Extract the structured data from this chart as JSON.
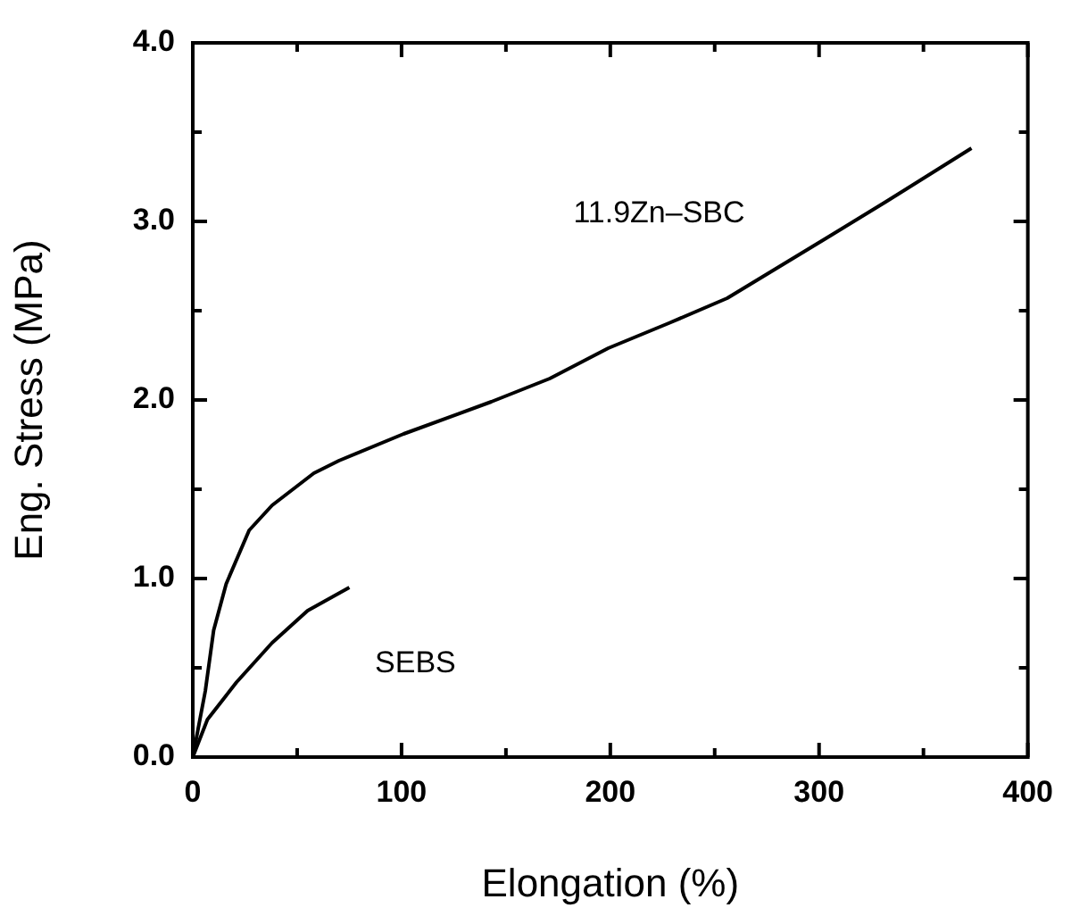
{
  "chart_data": {
    "type": "line",
    "xlabel": "Elongation (%)",
    "ylabel": "Eng. Stress (MPa)",
    "xlim": [
      0,
      400
    ],
    "ylim": [
      0,
      4
    ],
    "xticks": [
      0,
      {
        "value": 50,
        "label": null
      },
      100,
      {
        "value": 150,
        "label": null
      },
      200,
      {
        "value": 250,
        "label": null
      },
      300,
      {
        "value": 350,
        "label": null
      },
      400
    ],
    "yticks": [
      {
        "value": 0,
        "label": "0.0"
      },
      {
        "value": 0.5,
        "label": null
      },
      {
        "value": 1,
        "label": "1.0"
      },
      {
        "value": 1.5,
        "label": null
      },
      {
        "value": 2,
        "label": "2.0"
      },
      {
        "value": 2.5,
        "label": null
      },
      {
        "value": 3,
        "label": "3.0"
      },
      {
        "value": 3.5,
        "label": null
      },
      {
        "value": 4,
        "label": "4.0"
      }
    ],
    "series": [
      {
        "name": "11.9Zn–SBC",
        "color": "#000000",
        "x": [
          0,
          6,
          10,
          16,
          27,
          38,
          58,
          70,
          101,
          143,
          171,
          199,
          228,
          256,
          304,
          332,
          373
        ],
        "values": [
          0,
          0.37,
          0.71,
          0.97,
          1.27,
          1.41,
          1.59,
          1.66,
          1.81,
          1.99,
          2.12,
          2.29,
          2.43,
          2.57,
          2.91,
          3.11,
          3.41
        ]
      },
      {
        "name": "SEBS",
        "color": "#000000",
        "x": [
          0,
          7,
          21,
          38,
          55,
          75
        ],
        "values": [
          0,
          0.21,
          0.42,
          0.64,
          0.82,
          0.95
        ]
      }
    ],
    "marker": "none",
    "line_style": "solid",
    "legend": false
  }
}
